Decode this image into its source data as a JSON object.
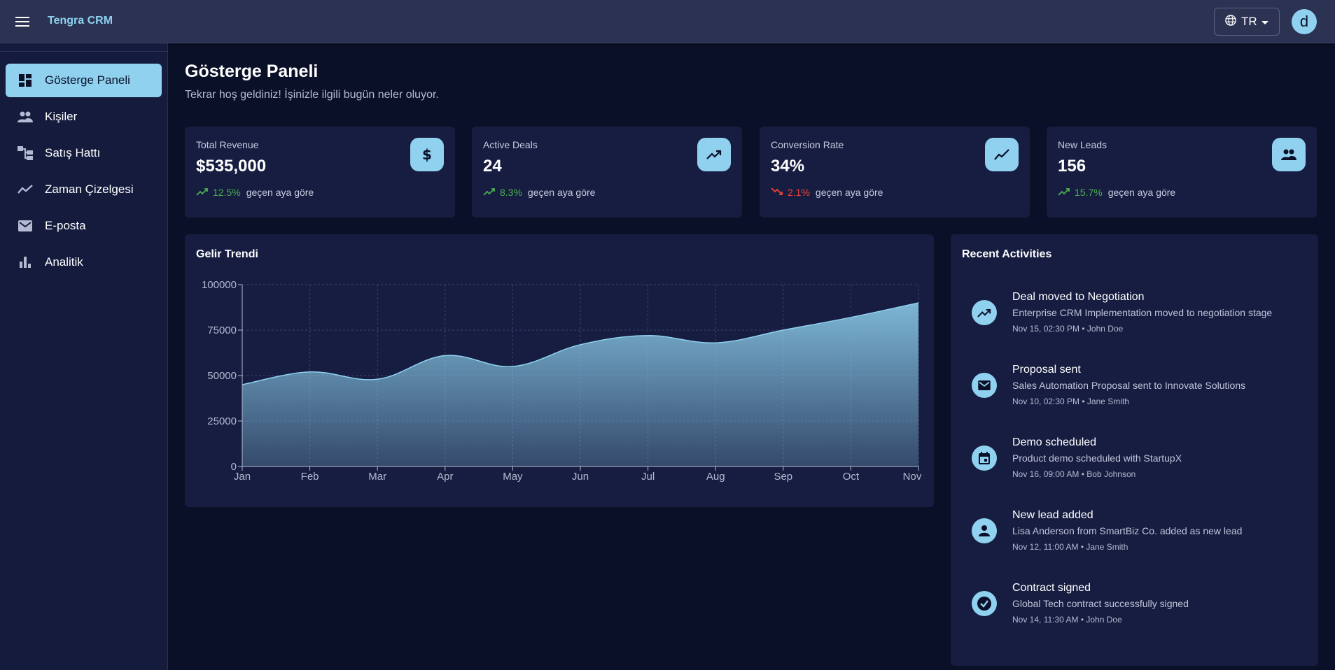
{
  "app": {
    "title": "Tengra CRM"
  },
  "header": {
    "language": "TR",
    "avatar_initial": "d"
  },
  "sidebar": {
    "items": [
      {
        "label": "Gösterge Paneli",
        "icon": "dashboard-icon",
        "active": true
      },
      {
        "label": "Kişiler",
        "icon": "people-icon"
      },
      {
        "label": "Satış Hattı",
        "icon": "pipeline-icon"
      },
      {
        "label": "Zaman Çizelgesi",
        "icon": "timeline-icon"
      },
      {
        "label": "E-posta",
        "icon": "email-icon"
      },
      {
        "label": "Analitik",
        "icon": "analytics-icon"
      }
    ]
  },
  "page": {
    "title": "Gösterge Paneli",
    "subtitle": "Tekrar hoş geldiniz! İşinizle ilgili bugün neler oluyor."
  },
  "stats": [
    {
      "title": "Total Revenue",
      "value": "$535,000",
      "change": "12.5%",
      "note": "geçen aya göre",
      "direction": "up",
      "icon": "dollar-icon"
    },
    {
      "title": "Active Deals",
      "value": "24",
      "change": "8.3%",
      "note": "geçen aya göre",
      "direction": "up",
      "icon": "trending-up-icon"
    },
    {
      "title": "Conversion Rate",
      "value": "34%",
      "change": "2.1%",
      "note": "geçen aya göre",
      "direction": "down",
      "icon": "show-chart-icon"
    },
    {
      "title": "New Leads",
      "value": "156",
      "change": "15.7%",
      "note": "geçen aya göre",
      "direction": "up",
      "icon": "people-icon"
    }
  ],
  "revenue_chart": {
    "title": "Gelir Trendi"
  },
  "chart_data": {
    "type": "area",
    "title": "Gelir Trendi",
    "categories": [
      "Jan",
      "Feb",
      "Mar",
      "Apr",
      "May",
      "Jun",
      "Jul",
      "Aug",
      "Sep",
      "Oct",
      "Nov"
    ],
    "values": [
      45000,
      52000,
      48000,
      61000,
      55000,
      67000,
      72000,
      68000,
      75000,
      82000,
      90000
    ],
    "yticks": [
      0,
      25000,
      50000,
      75000,
      100000
    ],
    "ylim": [
      0,
      100000
    ],
    "grid": true,
    "color": "#8fd1ef"
  },
  "activities": {
    "title": "Recent Activities",
    "items": [
      {
        "title": "Deal moved to Negotiation",
        "desc": "Enterprise CRM Implementation moved to negotiation stage",
        "meta": "Nov 15, 02:30 PM • John Doe",
        "icon": "trending-up-icon"
      },
      {
        "title": "Proposal sent",
        "desc": "Sales Automation Proposal sent to Innovate Solutions",
        "meta": "Nov 10, 02:30 PM • Jane Smith",
        "icon": "email-icon"
      },
      {
        "title": "Demo scheduled",
        "desc": "Product demo scheduled with StartupX",
        "meta": "Nov 16, 09:00 AM • Bob Johnson",
        "icon": "calendar-icon"
      },
      {
        "title": "New lead added",
        "desc": "Lisa Anderson from SmartBiz Co. added as new lead",
        "meta": "Nov 12, 11:00 AM • Jane Smith",
        "icon": "person-icon"
      },
      {
        "title": "Contract signed",
        "desc": "Global Tech contract successfully signed",
        "meta": "Nov 14, 11:30 AM • John Doe",
        "icon": "check-circle-icon"
      }
    ]
  },
  "colors": {
    "accent": "#8fd1ef",
    "background": "#0b1029",
    "card": "#161d40",
    "topbar": "#2c3251",
    "positive": "#4caf50",
    "negative": "#f44336"
  }
}
